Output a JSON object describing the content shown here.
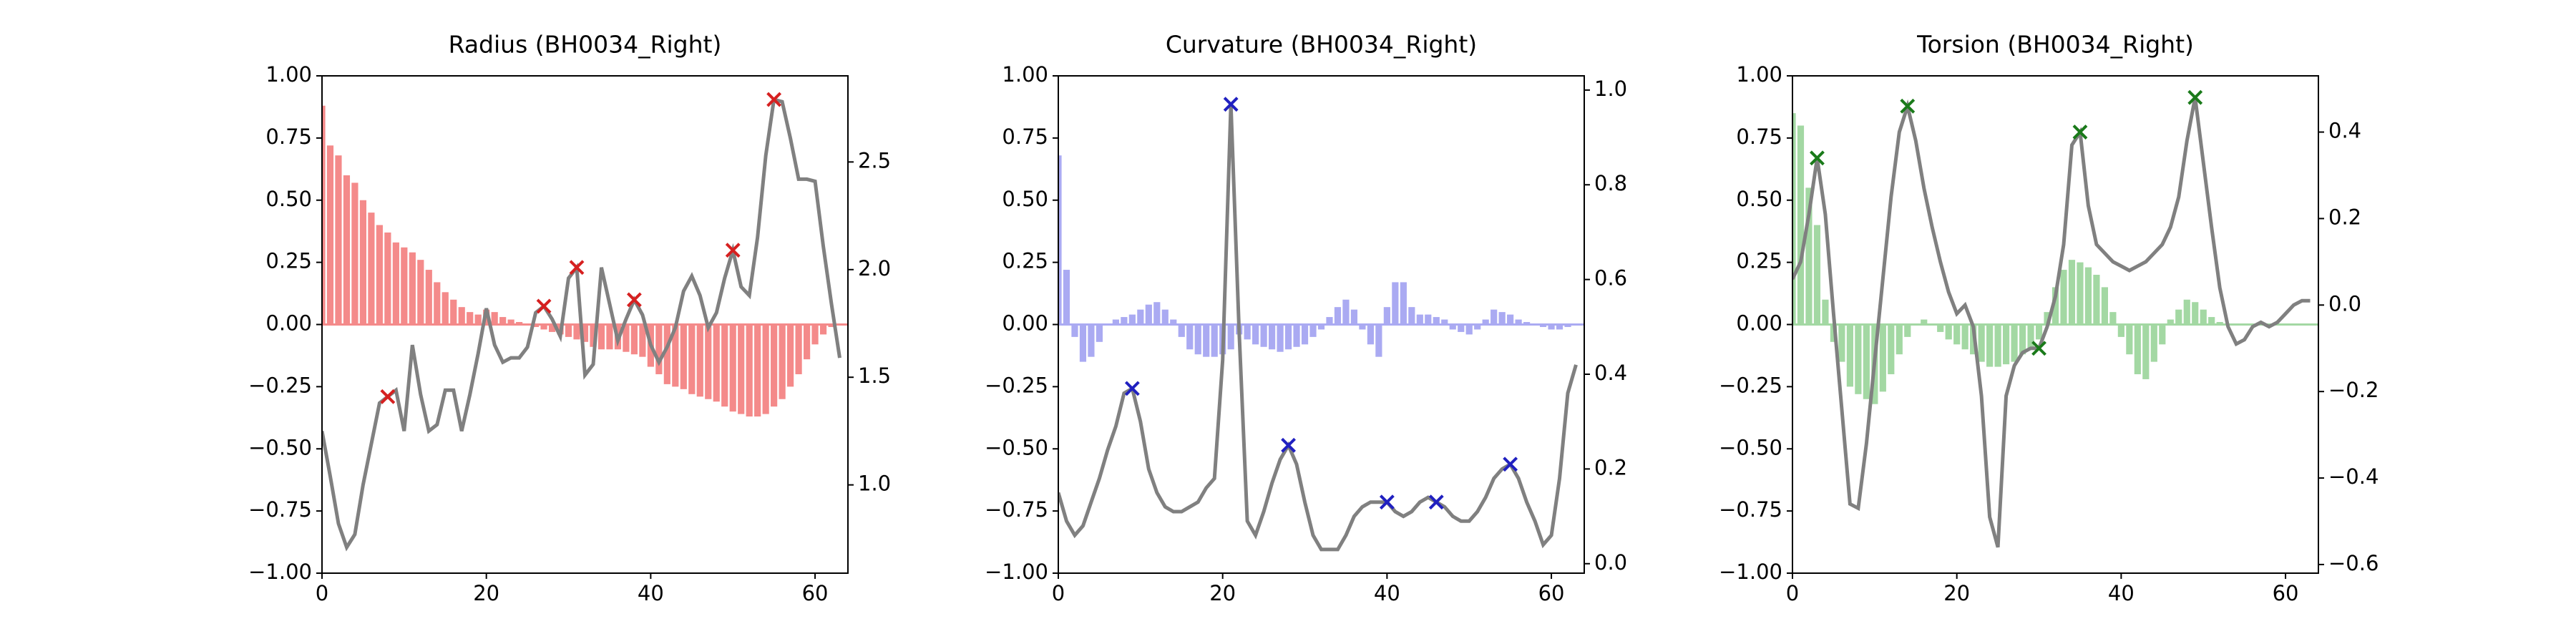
{
  "chart_data": [
    {
      "type": "bar_line",
      "title": "Radius (BH0034_Right)",
      "x": [
        0,
        1,
        2,
        3,
        4,
        5,
        6,
        7,
        8,
        9,
        10,
        11,
        12,
        13,
        14,
        15,
        16,
        17,
        18,
        19,
        20,
        21,
        22,
        23,
        24,
        25,
        26,
        27,
        28,
        29,
        30,
        31,
        32,
        33,
        34,
        35,
        36,
        37,
        38,
        39,
        40,
        41,
        42,
        43,
        44,
        45,
        46,
        47,
        48,
        49,
        50,
        51,
        52,
        53,
        54,
        55,
        56,
        57,
        58,
        59,
        60,
        61,
        62,
        63
      ],
      "bars": {
        "color": "#f48a8a",
        "values": [
          0.88,
          0.72,
          0.68,
          0.6,
          0.57,
          0.5,
          0.45,
          0.4,
          0.37,
          0.33,
          0.31,
          0.29,
          0.26,
          0.22,
          0.17,
          0.13,
          0.1,
          0.07,
          0.05,
          0.04,
          0.06,
          0.05,
          0.03,
          0.02,
          0.01,
          0,
          -0.01,
          -0.02,
          -0.03,
          -0.04,
          -0.05,
          -0.06,
          -0.07,
          -0.09,
          -0.1,
          -0.1,
          -0.1,
          -0.11,
          -0.12,
          -0.13,
          -0.17,
          -0.2,
          -0.24,
          -0.25,
          -0.26,
          -0.28,
          -0.29,
          -0.3,
          -0.31,
          -0.33,
          -0.35,
          -0.36,
          -0.37,
          -0.37,
          -0.36,
          -0.33,
          -0.3,
          -0.25,
          -0.2,
          -0.14,
          -0.08,
          -0.04,
          -0.01,
          0
        ]
      },
      "line": {
        "color": "#808080",
        "axis": "y2",
        "values": [
          1.25,
          1.04,
          0.82,
          0.71,
          0.77,
          1.0,
          1.19,
          1.38,
          1.41,
          1.44,
          1.25,
          1.65,
          1.42,
          1.25,
          1.28,
          1.44,
          1.44,
          1.25,
          1.42,
          1.61,
          1.82,
          1.65,
          1.57,
          1.59,
          1.59,
          1.64,
          1.8,
          1.83,
          1.77,
          1.69,
          1.96,
          2.01,
          1.51,
          1.56,
          2.01,
          1.84,
          1.67,
          1.77,
          1.86,
          1.79,
          1.65,
          1.57,
          1.64,
          1.73,
          1.9,
          1.97,
          1.88,
          1.73,
          1.8,
          1.96,
          2.09,
          1.92,
          1.88,
          2.15,
          2.53,
          2.79,
          2.78,
          2.61,
          2.42,
          2.42,
          2.41,
          2.11,
          1.84,
          1.59
        ]
      },
      "markers": {
        "color": "#d62020",
        "x": [
          8,
          27,
          31,
          38,
          50,
          55
        ]
      },
      "xlim": [
        0,
        64
      ],
      "xticks": [
        0,
        20,
        40,
        60
      ],
      "ylim": [
        -1,
        1
      ],
      "yticks": [
        {
          "value": 1,
          "label": "1.00"
        },
        {
          "value": 0.75,
          "label": "0.75"
        },
        {
          "value": 0.5,
          "label": "0.50"
        },
        {
          "value": 0.25,
          "label": "0.25"
        },
        {
          "value": 0,
          "label": "0.00"
        },
        {
          "value": -0.25,
          "label": "−0.25"
        },
        {
          "value": -0.5,
          "label": "−0.50"
        },
        {
          "value": -0.75,
          "label": "−0.75"
        },
        {
          "value": -1,
          "label": "−1.00"
        }
      ],
      "y2lim": [
        0.59,
        2.9
      ],
      "y2ticks": [
        {
          "value": 1,
          "label": "1.0"
        },
        1.5,
        {
          "value": 2,
          "label": "2.0"
        },
        2.5
      ]
    },
    {
      "type": "bar_line",
      "title": "Curvature (BH0034_Right)",
      "x": [
        0,
        1,
        2,
        3,
        4,
        5,
        6,
        7,
        8,
        9,
        10,
        11,
        12,
        13,
        14,
        15,
        16,
        17,
        18,
        19,
        20,
        21,
        22,
        23,
        24,
        25,
        26,
        27,
        28,
        29,
        30,
        31,
        32,
        33,
        34,
        35,
        36,
        37,
        38,
        39,
        40,
        41,
        42,
        43,
        44,
        45,
        46,
        47,
        48,
        49,
        50,
        51,
        52,
        53,
        54,
        55,
        56,
        57,
        58,
        59,
        60,
        61,
        62,
        63
      ],
      "bars": {
        "color": "#aaaaf2",
        "values": [
          0.68,
          0.22,
          -0.05,
          -0.15,
          -0.13,
          -0.07,
          0,
          0.02,
          0.03,
          0.04,
          0.06,
          0.08,
          0.09,
          0.06,
          0.02,
          -0.05,
          -0.1,
          -0.12,
          -0.13,
          -0.13,
          -0.12,
          -0.1,
          -0.04,
          -0.06,
          -0.08,
          -0.09,
          -0.1,
          -0.11,
          -0.1,
          -0.09,
          -0.08,
          -0.05,
          -0.02,
          0.03,
          0.07,
          0.1,
          0.06,
          -0.02,
          -0.08,
          -0.13,
          0.07,
          0.17,
          0.17,
          0.07,
          0.04,
          0.04,
          0.03,
          0.02,
          -0.02,
          -0.03,
          -0.04,
          -0.02,
          0.02,
          0.06,
          0.05,
          0.04,
          0.02,
          0.01,
          0,
          -0.01,
          -0.02,
          -0.02,
          -0.01,
          0
        ]
      },
      "line": {
        "color": "#808080",
        "axis": "y2",
        "values": [
          0.15,
          0.09,
          0.06,
          0.08,
          0.13,
          0.18,
          0.24,
          0.29,
          0.36,
          0.37,
          0.3,
          0.2,
          0.15,
          0.12,
          0.11,
          0.11,
          0.12,
          0.13,
          0.16,
          0.18,
          0.43,
          0.97,
          0.49,
          0.09,
          0.06,
          0.11,
          0.17,
          0.22,
          0.25,
          0.21,
          0.13,
          0.06,
          0.03,
          0.03,
          0.03,
          0.06,
          0.1,
          0.12,
          0.13,
          0.13,
          0.13,
          0.11,
          0.1,
          0.11,
          0.13,
          0.14,
          0.13,
          0.12,
          0.1,
          0.09,
          0.09,
          0.11,
          0.14,
          0.18,
          0.2,
          0.21,
          0.18,
          0.13,
          0.09,
          0.04,
          0.06,
          0.18,
          0.36,
          0.42
        ]
      },
      "markers": {
        "color": "#2020c0",
        "x": [
          9,
          21,
          28,
          40,
          46,
          55
        ]
      },
      "xlim": [
        0,
        64
      ],
      "xticks": [
        0,
        20,
        40,
        60
      ],
      "ylim": [
        -1,
        1
      ],
      "yticks": [
        {
          "value": 1,
          "label": "1.00"
        },
        {
          "value": 0.75,
          "label": "0.75"
        },
        {
          "value": 0.5,
          "label": "0.50"
        },
        {
          "value": 0.25,
          "label": "0.25"
        },
        {
          "value": 0,
          "label": "0.00"
        },
        {
          "value": -0.25,
          "label": "−0.25"
        },
        {
          "value": -0.5,
          "label": "−0.50"
        },
        {
          "value": -0.75,
          "label": "−0.75"
        },
        {
          "value": -1,
          "label": "−1.00"
        }
      ],
      "y2lim": [
        -0.02,
        1.03
      ],
      "y2ticks": [
        {
          "value": 0,
          "label": "0.0"
        },
        0.2,
        0.4,
        0.6,
        0.8,
        {
          "value": 1,
          "label": "1.0"
        }
      ]
    },
    {
      "type": "bar_line",
      "title": "Torsion (BH0034_Right)",
      "x": [
        0,
        1,
        2,
        3,
        4,
        5,
        6,
        7,
        8,
        9,
        10,
        11,
        12,
        13,
        14,
        15,
        16,
        17,
        18,
        19,
        20,
        21,
        22,
        23,
        24,
        25,
        26,
        27,
        28,
        29,
        30,
        31,
        32,
        33,
        34,
        35,
        36,
        37,
        38,
        39,
        40,
        41,
        42,
        43,
        44,
        45,
        46,
        47,
        48,
        49,
        50,
        51,
        52,
        53,
        54,
        55,
        56,
        57,
        58,
        59,
        60,
        61,
        62,
        63
      ],
      "bars": {
        "color": "#a3d8a3",
        "values": [
          0.85,
          0.8,
          0.55,
          0.4,
          0.1,
          -0.07,
          -0.15,
          -0.25,
          -0.28,
          -0.3,
          -0.32,
          -0.27,
          -0.2,
          -0.12,
          -0.05,
          0,
          0.02,
          0,
          -0.03,
          -0.06,
          -0.08,
          -0.1,
          -0.12,
          -0.15,
          -0.17,
          -0.17,
          -0.16,
          -0.15,
          -0.12,
          -0.1,
          -0.06,
          0.05,
          0.15,
          0.22,
          0.26,
          0.25,
          0.23,
          0.2,
          0.15,
          0.05,
          -0.05,
          -0.12,
          -0.2,
          -0.22,
          -0.15,
          -0.08,
          0.02,
          0.06,
          0.1,
          0.09,
          0.06,
          0.03,
          0.01,
          0,
          0,
          0,
          0,
          0,
          0,
          0,
          0,
          0,
          0,
          0
        ]
      },
      "line": {
        "color": "#808080",
        "axis": "y2",
        "values": [
          0.06,
          0.1,
          0.21,
          0.34,
          0.21,
          -0.02,
          -0.24,
          -0.46,
          -0.47,
          -0.32,
          -0.13,
          0.06,
          0.25,
          0.4,
          0.46,
          0.38,
          0.27,
          0.18,
          0.1,
          0.03,
          -0.02,
          0,
          -0.05,
          -0.21,
          -0.49,
          -0.56,
          -0.21,
          -0.14,
          -0.11,
          -0.1,
          -0.1,
          -0.05,
          0.02,
          0.14,
          0.37,
          0.4,
          0.23,
          0.14,
          0.12,
          0.1,
          0.09,
          0.08,
          0.09,
          0.1,
          0.12,
          0.14,
          0.18,
          0.25,
          0.38,
          0.48,
          0.33,
          0.18,
          0.04,
          -0.05,
          -0.09,
          -0.08,
          -0.05,
          -0.04,
          -0.05,
          -0.04,
          -0.02,
          0,
          0.01,
          0.01
        ]
      },
      "markers": {
        "color": "#1a7a1a",
        "x": [
          3,
          14,
          30,
          35,
          49
        ]
      },
      "xlim": [
        0,
        64
      ],
      "xticks": [
        0,
        20,
        40,
        60
      ],
      "ylim": [
        -1,
        1
      ],
      "yticks": [
        {
          "value": 1,
          "label": "1.00"
        },
        {
          "value": 0.75,
          "label": "0.75"
        },
        {
          "value": 0.5,
          "label": "0.50"
        },
        {
          "value": 0.25,
          "label": "0.25"
        },
        {
          "value": 0,
          "label": "0.00"
        },
        {
          "value": -0.25,
          "label": "−0.25"
        },
        {
          "value": -0.5,
          "label": "−0.50"
        },
        {
          "value": -0.75,
          "label": "−0.75"
        },
        {
          "value": -1,
          "label": "−1.00"
        }
      ],
      "y2lim": [
        -0.62,
        0.53
      ],
      "y2ticks": [
        {
          "value": -0.6,
          "label": "−0.6"
        },
        {
          "value": -0.4,
          "label": "−0.4"
        },
        {
          "value": -0.2,
          "label": "−0.2"
        },
        {
          "value": 0,
          "label": "0.0"
        },
        0.2,
        0.4
      ]
    }
  ]
}
